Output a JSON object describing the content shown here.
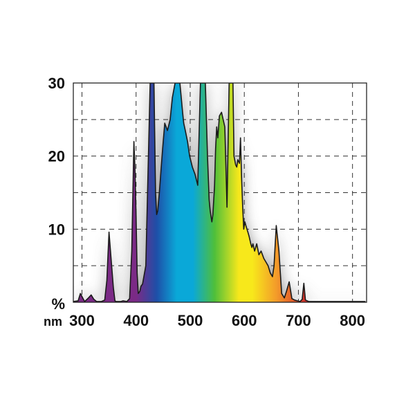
{
  "chart_data": {
    "type": "area",
    "title": "",
    "xlabel": "nm",
    "ylabel": "%",
    "xlim": [
      284,
      826
    ],
    "ylim": [
      0,
      30
    ],
    "grid": "dashed",
    "x_ticks": [
      300,
      400,
      500,
      600,
      700,
      800
    ],
    "y_ticks": [
      10,
      20,
      30
    ],
    "x_tick_labels": [
      "300",
      "400",
      "500",
      "600",
      "700",
      "800"
    ],
    "y_tick_labels": [
      "10",
      "20",
      "30"
    ],
    "x_unit_label": "nm",
    "y_unit_label": "%",
    "colors": {
      "outline": "#1a1a1a",
      "violet": "#7b2a86",
      "blue": "#1e4fa8",
      "cyan": "#0aa8d8",
      "green": "#4fbf3a",
      "yellow": "#f7e81b",
      "orange": "#f39a2a",
      "red": "#d42a2a"
    },
    "series": [
      {
        "x": [
          284,
          293,
          297,
          302,
          305,
          312,
          317,
          322,
          327,
          336,
          342,
          346,
          350,
          358,
          361,
          363,
          365,
          369,
          372,
          376,
          383,
          388,
          392,
          396,
          398,
          400,
          402,
          404,
          407,
          409,
          412,
          418,
          426,
          430,
          433,
          436,
          438,
          440,
          443,
          446,
          449,
          453,
          458,
          463,
          467,
          472,
          477,
          481,
          486,
          488,
          491,
          495,
          499,
          504,
          509,
          514,
          519,
          524,
          528,
          532,
          535,
          537,
          540,
          542,
          545,
          547,
          549,
          551,
          554,
          558,
          564,
          568,
          572,
          576,
          579,
          581,
          584,
          586,
          588,
          591,
          593,
          595,
          597,
          599,
          601,
          603,
          605,
          607,
          609,
          612,
          614,
          616,
          619,
          623,
          627,
          631,
          636,
          640,
          644,
          648,
          652,
          655,
          659,
          664,
          669,
          674,
          678,
          683,
          688,
          693,
          698,
          703,
          707,
          710,
          713,
          716,
          719,
          721,
          724,
          727,
          730,
          734,
          739,
          745,
          751,
          755,
          759,
          764,
          769,
          774,
          777,
          779,
          782,
          785,
          789,
          794,
          800,
          806,
          812,
          818,
          824
        ],
        "y": [
          0.1,
          0.2,
          1.2,
          0.5,
          0.1,
          0.6,
          1.0,
          0.4,
          0.1,
          0.1,
          0.3,
          3.0,
          9.6,
          2.0,
          0.2,
          0.1,
          0.1,
          0.1,
          0.1,
          0.2,
          0.1,
          0.5,
          7.0,
          22.0,
          18.0,
          12.0,
          4.0,
          1.2,
          1.5,
          2.2,
          2.5,
          5.0,
          30.0,
          30.0,
          30.0,
          15.0,
          12.0,
          12.5,
          15.0,
          18.0,
          21.0,
          24.5,
          23.5,
          25.0,
          28.0,
          30.0,
          30.0,
          30.0,
          26.0,
          24.5,
          23.5,
          22.0,
          20.0,
          18.5,
          17.5,
          16.0,
          30.0,
          30.0,
          30.0,
          20.0,
          14.0,
          12.5,
          11.0,
          12.0,
          16.0,
          21.0,
          24.0,
          22.5,
          25.5,
          26.0,
          24.0,
          13.0,
          30.0,
          30.0,
          30.0,
          20.0,
          18.8,
          18.5,
          19.5,
          19.0,
          22.5,
          17.0,
          13.0,
          10.0,
          11.0,
          10.5,
          10.0,
          9.5,
          9.0,
          8.0,
          7.5,
          8.0,
          7.0,
          8.0,
          6.5,
          7.0,
          6.0,
          5.5,
          5.0,
          4.0,
          3.5,
          5.0,
          10.5,
          7.0,
          1.2,
          0.6,
          1.5,
          2.8,
          0.5,
          0.3,
          0.2,
          0.1,
          0.4,
          2.6,
          0.3,
          0.2,
          0.1,
          0.1,
          0.1,
          0.1,
          0.1,
          0.1,
          0.1,
          0.1,
          0.1,
          0.1,
          0.1,
          0.1,
          0.1,
          0.1,
          0.1,
          0.1,
          0.1,
          0.1,
          0.1,
          0.1,
          0.1,
          0.1,
          0.1,
          0.1,
          0.1
        ]
      }
    ]
  }
}
